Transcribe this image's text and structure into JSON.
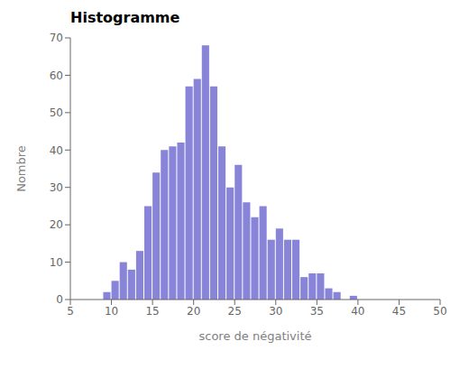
{
  "chart_data": {
    "type": "histogram",
    "title": "Histogramme",
    "x_label": "score de négativité",
    "y_label": "Nombre",
    "bins": [
      9,
      10,
      11,
      12,
      13,
      14,
      15,
      16,
      17,
      18,
      19,
      20,
      21,
      22,
      23,
      24,
      25,
      26,
      27,
      28,
      29,
      30,
      31,
      32,
      33,
      34,
      35,
      36,
      37,
      38,
      39,
      40
    ],
    "values": [
      2,
      5,
      10,
      8,
      13,
      25,
      34,
      40,
      41,
      42,
      57,
      59,
      68,
      57,
      41,
      30,
      36,
      26,
      22,
      25,
      16,
      19,
      16,
      16,
      6,
      7,
      7,
      3,
      2,
      0,
      1
    ],
    "color": "#8884d8",
    "xlim": [
      5,
      50
    ],
    "ylim": [
      0,
      70
    ],
    "xticks": [
      5,
      10,
      15,
      20,
      25,
      30,
      35,
      40,
      45,
      50
    ],
    "yticks": [
      0,
      10,
      20,
      30,
      40,
      50,
      60,
      70
    ],
    "grid": false
  }
}
